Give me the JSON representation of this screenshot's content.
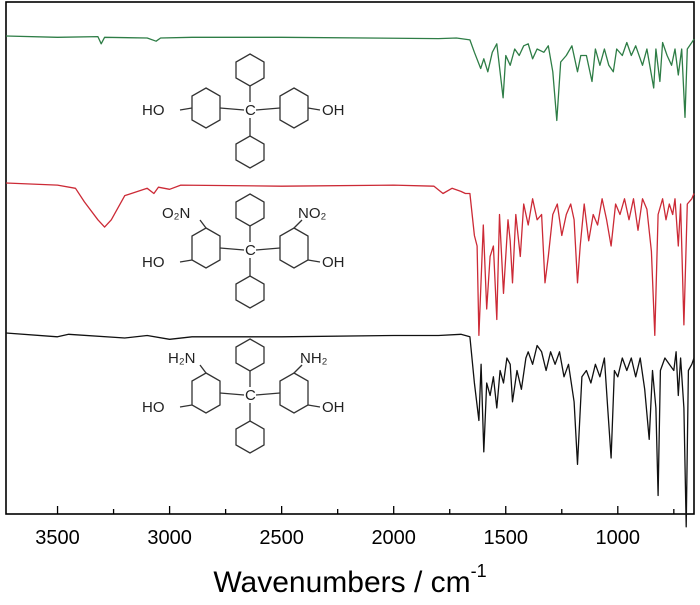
{
  "chart_data": {
    "type": "line",
    "xlabel": "Wavenumbers / cm",
    "xlabel_superscript": "-1",
    "xlim": [
      3730,
      660
    ],
    "x_reversed": true,
    "y_ticks_shown": false,
    "grid": false,
    "xticks": [
      3500,
      3000,
      2500,
      2000,
      1500,
      1000
    ],
    "tick_labels": [
      "3500",
      "3000",
      "2500",
      "2000",
      "1500",
      "1000"
    ],
    "series": [
      {
        "color": "#2e7d46",
        "baseline": 0.0,
        "points": [
          [
            3730,
            0
          ],
          [
            3500,
            0.02
          ],
          [
            3320,
            0.01
          ],
          [
            3305,
            0.12
          ],
          [
            3290,
            0.02
          ],
          [
            3100,
            0.03
          ],
          [
            3060,
            0.08
          ],
          [
            3040,
            0.03
          ],
          [
            2900,
            0.02
          ],
          [
            2500,
            0.02
          ],
          [
            1800,
            0.04
          ],
          [
            1720,
            0.03
          ],
          [
            1660,
            0.06
          ],
          [
            1640,
            0.25
          ],
          [
            1612,
            0.5
          ],
          [
            1598,
            0.35
          ],
          [
            1580,
            0.55
          ],
          [
            1560,
            0.25
          ],
          [
            1540,
            0.12
          ],
          [
            1512,
            0.95
          ],
          [
            1500,
            0.3
          ],
          [
            1480,
            0.45
          ],
          [
            1460,
            0.2
          ],
          [
            1440,
            0.3
          ],
          [
            1420,
            0.15
          ],
          [
            1400,
            0.12
          ],
          [
            1380,
            0.35
          ],
          [
            1360,
            0.2
          ],
          [
            1330,
            0.25
          ],
          [
            1310,
            0.15
          ],
          [
            1290,
            0.55
          ],
          [
            1272,
            1.3
          ],
          [
            1255,
            0.4
          ],
          [
            1230,
            0.3
          ],
          [
            1205,
            0.15
          ],
          [
            1180,
            0.55
          ],
          [
            1165,
            0.3
          ],
          [
            1140,
            0.3
          ],
          [
            1115,
            0.7
          ],
          [
            1100,
            0.2
          ],
          [
            1080,
            0.45
          ],
          [
            1060,
            0.2
          ],
          [
            1040,
            0.45
          ],
          [
            1020,
            0.55
          ],
          [
            1005,
            0.2
          ],
          [
            980,
            0.3
          ],
          [
            960,
            0.1
          ],
          [
            940,
            0.3
          ],
          [
            920,
            0.15
          ],
          [
            890,
            0.45
          ],
          [
            870,
            0.2
          ],
          [
            840,
            0.8
          ],
          [
            830,
            0.2
          ],
          [
            812,
            0.7
          ],
          [
            800,
            0.1
          ],
          [
            780,
            0.3
          ],
          [
            760,
            0.45
          ],
          [
            745,
            0.2
          ],
          [
            730,
            0.6
          ],
          [
            715,
            0.2
          ],
          [
            700,
            1.25
          ],
          [
            690,
            0.2
          ],
          [
            670,
            0.1
          ],
          [
            660,
            0.05
          ]
        ]
      },
      {
        "color": "#cc2a36",
        "baseline": 0.0,
        "points": [
          [
            3730,
            0
          ],
          [
            3500,
            0.02
          ],
          [
            3420,
            0.05
          ],
          [
            3380,
            0.18
          ],
          [
            3320,
            0.35
          ],
          [
            3290,
            0.42
          ],
          [
            3260,
            0.35
          ],
          [
            3200,
            0.12
          ],
          [
            3100,
            0.05
          ],
          [
            3070,
            0.1
          ],
          [
            3050,
            0.04
          ],
          [
            3000,
            0.06
          ],
          [
            2950,
            0.02
          ],
          [
            2500,
            0.03
          ],
          [
            2000,
            0.02
          ],
          [
            1820,
            0.03
          ],
          [
            1780,
            0.1
          ],
          [
            1740,
            0.05
          ],
          [
            1700,
            0.08
          ],
          [
            1680,
            0.1
          ],
          [
            1660,
            0.1
          ],
          [
            1640,
            0.5
          ],
          [
            1628,
            0.6
          ],
          [
            1620,
            1.45
          ],
          [
            1600,
            0.4
          ],
          [
            1585,
            1.2
          ],
          [
            1570,
            0.7
          ],
          [
            1555,
            0.6
          ],
          [
            1540,
            1.3
          ],
          [
            1528,
            0.3
          ],
          [
            1510,
            1.05
          ],
          [
            1490,
            0.35
          ],
          [
            1480,
            0.55
          ],
          [
            1470,
            0.95
          ],
          [
            1455,
            0.3
          ],
          [
            1435,
            0.7
          ],
          [
            1420,
            0.2
          ],
          [
            1400,
            0.4
          ],
          [
            1380,
            0.15
          ],
          [
            1360,
            0.35
          ],
          [
            1340,
            0.3
          ],
          [
            1325,
            0.95
          ],
          [
            1310,
            0.7
          ],
          [
            1290,
            0.3
          ],
          [
            1270,
            0.2
          ],
          [
            1250,
            0.5
          ],
          [
            1230,
            0.3
          ],
          [
            1210,
            0.2
          ],
          [
            1195,
            0.35
          ],
          [
            1180,
            0.95
          ],
          [
            1168,
            0.6
          ],
          [
            1150,
            0.2
          ],
          [
            1130,
            0.55
          ],
          [
            1110,
            0.3
          ],
          [
            1090,
            0.4
          ],
          [
            1070,
            0.15
          ],
          [
            1050,
            0.35
          ],
          [
            1030,
            0.6
          ],
          [
            1010,
            0.2
          ],
          [
            990,
            0.3
          ],
          [
            970,
            0.15
          ],
          [
            950,
            0.35
          ],
          [
            930,
            0.15
          ],
          [
            910,
            0.45
          ],
          [
            890,
            0.15
          ],
          [
            870,
            0.25
          ],
          [
            850,
            0.65
          ],
          [
            835,
            1.45
          ],
          [
            820,
            0.3
          ],
          [
            800,
            0.15
          ],
          [
            785,
            0.35
          ],
          [
            770,
            0.2
          ],
          [
            755,
            0.3
          ],
          [
            745,
            0.15
          ],
          [
            730,
            0.6
          ],
          [
            720,
            0.2
          ],
          [
            705,
            1.35
          ],
          [
            690,
            0.2
          ],
          [
            670,
            0.15
          ],
          [
            660,
            0.1
          ]
        ]
      },
      {
        "color": "#111111",
        "baseline": 0.0,
        "points": [
          [
            3730,
            0
          ],
          [
            3500,
            0.03
          ],
          [
            3450,
            0.01
          ],
          [
            3200,
            0.04
          ],
          [
            3100,
            0.02
          ],
          [
            3000,
            0.05
          ],
          [
            2900,
            0.03
          ],
          [
            2500,
            0.03
          ],
          [
            2000,
            0.02
          ],
          [
            1800,
            0.02
          ],
          [
            1700,
            0.01
          ],
          [
            1660,
            0.03
          ],
          [
            1640,
            0.4
          ],
          [
            1620,
            0.7
          ],
          [
            1610,
            0.25
          ],
          [
            1598,
            0.95
          ],
          [
            1585,
            0.4
          ],
          [
            1570,
            0.5
          ],
          [
            1555,
            0.35
          ],
          [
            1540,
            0.6
          ],
          [
            1525,
            0.3
          ],
          [
            1510,
            0.4
          ],
          [
            1495,
            0.2
          ],
          [
            1480,
            0.25
          ],
          [
            1470,
            0.55
          ],
          [
            1450,
            0.3
          ],
          [
            1430,
            0.45
          ],
          [
            1410,
            0.2
          ],
          [
            1400,
            0.15
          ],
          [
            1380,
            0.25
          ],
          [
            1360,
            0.1
          ],
          [
            1340,
            0.15
          ],
          [
            1320,
            0.3
          ],
          [
            1300,
            0.15
          ],
          [
            1280,
            0.25
          ],
          [
            1260,
            0.15
          ],
          [
            1240,
            0.35
          ],
          [
            1220,
            0.25
          ],
          [
            1195,
            0.55
          ],
          [
            1180,
            1.05
          ],
          [
            1160,
            0.35
          ],
          [
            1140,
            0.3
          ],
          [
            1120,
            0.4
          ],
          [
            1100,
            0.25
          ],
          [
            1080,
            0.35
          ],
          [
            1060,
            0.2
          ],
          [
            1045,
            0.6
          ],
          [
            1030,
            1.0
          ],
          [
            1015,
            0.3
          ],
          [
            1000,
            0.35
          ],
          [
            980,
            0.2
          ],
          [
            960,
            0.3
          ],
          [
            940,
            0.2
          ],
          [
            920,
            0.35
          ],
          [
            900,
            0.2
          ],
          [
            880,
            0.45
          ],
          [
            860,
            0.85
          ],
          [
            845,
            0.3
          ],
          [
            830,
            0.6
          ],
          [
            820,
            1.3
          ],
          [
            810,
            0.3
          ],
          [
            790,
            0.2
          ],
          [
            770,
            0.25
          ],
          [
            750,
            0.3
          ],
          [
            740,
            0.15
          ],
          [
            730,
            0.5
          ],
          [
            720,
            0.2
          ],
          [
            705,
            0.6
          ],
          [
            695,
            1.55
          ],
          [
            685,
            0.3
          ],
          [
            670,
            0.25
          ],
          [
            660,
            0.2
          ]
        ]
      }
    ],
    "molecules": [
      {
        "left_group": "HO",
        "right_group": "OH",
        "left_sub": "",
        "right_sub": "",
        "center": "C"
      },
      {
        "left_group": "HO",
        "right_group": "OH",
        "left_sub": "O₂N",
        "right_sub": "NO₂",
        "center": "C"
      },
      {
        "left_group": "HO",
        "right_group": "OH",
        "left_sub": "H₂N",
        "right_sub": "NH₂",
        "center": "C"
      }
    ]
  }
}
